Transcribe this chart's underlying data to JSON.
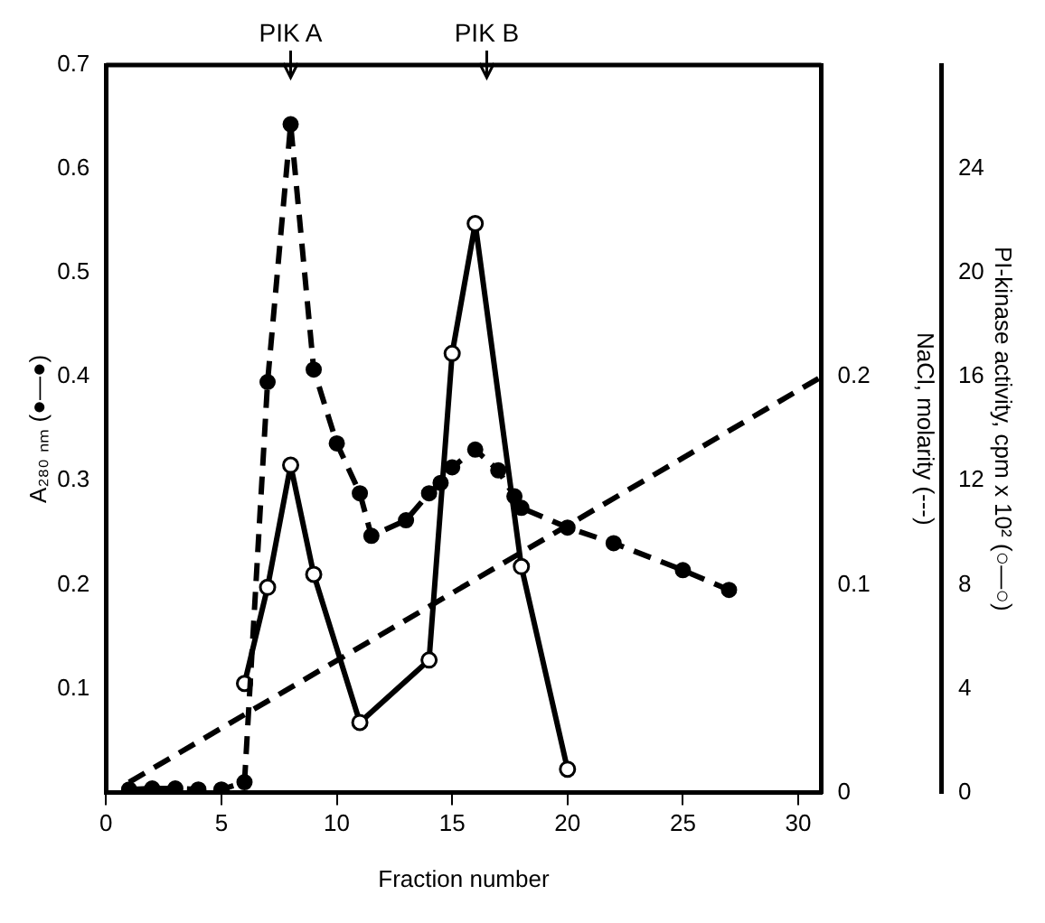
{
  "chart_data": {
    "type": "line",
    "xlabel": "Fraction number",
    "ylabel": "A₂₈₀ ₙₘ (●—●)",
    "y2label": "NaCl, molarity (---)",
    "y3label": "PI-kinase activity, cpm x 10² (○—○)",
    "ref_lines": [
      {
        "axis": "x",
        "value": 8,
        "label": "PIK A"
      },
      {
        "axis": "x",
        "value": 16.5,
        "label": "PIK B"
      }
    ],
    "xlim": [
      0,
      31
    ],
    "xticks": [
      0,
      5,
      10,
      15,
      20,
      25,
      30
    ],
    "ylim": [
      0,
      0.7
    ],
    "yticks": [
      0.1,
      0.2,
      0.3,
      0.4,
      0.5,
      0.6,
      0.7
    ],
    "y2lim": [
      0,
      0.35
    ],
    "y2ticks": [
      0,
      0.1,
      0.2
    ],
    "y3lim": [
      0,
      28
    ],
    "y3ticks": [
      0,
      4,
      8,
      12,
      16,
      20,
      24
    ],
    "grid": false,
    "legend": false,
    "series": [
      {
        "color": "#000000",
        "marker": "circle",
        "line_style": "dashed",
        "x": [
          1,
          2,
          3,
          4,
          5,
          6,
          7,
          8,
          9,
          10,
          11,
          11.5,
          13,
          14,
          14.5,
          15,
          16,
          17,
          17.7,
          18,
          20,
          22,
          25,
          27
        ],
        "values": [
          0.003,
          0.004,
          0.004,
          0.003,
          0.003,
          0.01,
          0.395,
          0.643,
          0.407,
          0.336,
          0.288,
          0.247,
          0.262,
          0.288,
          0.298,
          0.313,
          0.33,
          0.31,
          0.285,
          0.274,
          0.255,
          0.24,
          0.214,
          0.195
        ]
      },
      {
        "color": "#000000",
        "marker": "none",
        "line_style": "dashed",
        "axis": "y2",
        "x": [
          1,
          31
        ],
        "values": [
          0.005,
          0.2
        ]
      },
      {
        "color": "#000000",
        "marker": "circle",
        "line_style": "solid",
        "axis": "y3",
        "x": [
          6,
          7,
          8,
          9,
          11,
          14,
          15,
          16,
          18,
          20
        ],
        "values": [
          4.2,
          7.9,
          12.6,
          8.4,
          2.7,
          5.1,
          16.9,
          21.9,
          8.7,
          0.9
        ]
      }
    ]
  }
}
